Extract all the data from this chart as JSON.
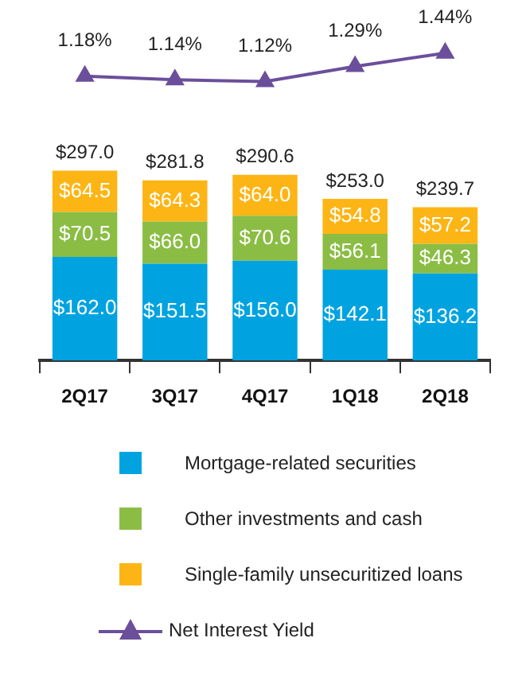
{
  "chart_data": [
    {
      "type": "line",
      "categories": [
        null,
        null,
        null,
        null,
        null
      ],
      "tick_labels": false,
      "grid": false,
      "legend": "bottom",
      "marker": "triangle",
      "series": [
        {
          "name": "Net Interest Yield",
          "color": "#6b4f9b",
          "values": [
            1.18,
            1.14,
            1.12,
            1.29,
            1.44
          ],
          "value_labels": [
            "1.18%",
            "1.14%",
            "1.12%",
            "1.29%",
            "1.44%"
          ]
        }
      ]
    },
    {
      "type": "bar",
      "stacked": true,
      "categories": [
        "2Q17",
        "3Q17",
        "4Q17",
        "1Q18",
        "2Q18"
      ],
      "tick_labels": "x",
      "grid": false,
      "legend": "bottom",
      "series": [
        {
          "name": "Mortgage-related securities",
          "color": "#00a3e0",
          "values": [
            162.0,
            151.5,
            156.0,
            142.1,
            136.2
          ],
          "value_labels": [
            "$162.0",
            "$151.5",
            "$156.0",
            "$142.1",
            "$136.2"
          ]
        },
        {
          "name": "Other investments and cash",
          "color": "#8bbd45",
          "values": [
            70.5,
            66.0,
            70.6,
            56.1,
            46.3
          ],
          "value_labels": [
            "$70.5",
            "$66.0",
            "$70.6",
            "$56.1",
            "$46.3"
          ]
        },
        {
          "name": "Single-family unsecuritized loans",
          "color": "#fdb515",
          "values": [
            64.5,
            64.3,
            64.0,
            54.8,
            57.2
          ],
          "value_labels": [
            "$64.5",
            "$64.3",
            "$64.0",
            "$54.8",
            "$57.2"
          ]
        }
      ],
      "totals": [
        "$297.0",
        "$281.8",
        "$290.6",
        "$253.0",
        "$239.7"
      ]
    }
  ]
}
